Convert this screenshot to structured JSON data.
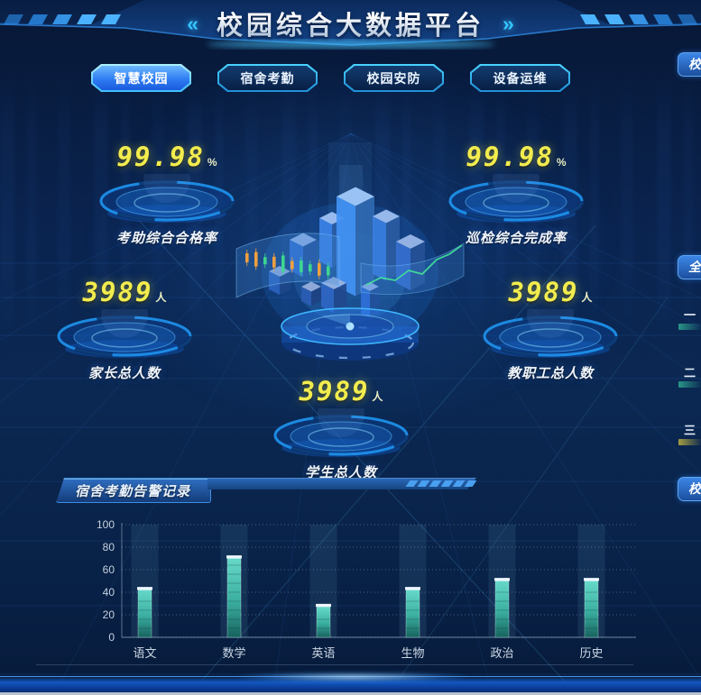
{
  "header": {
    "title": "校园综合大数据平台",
    "chevron_left": "«",
    "chevron_right": "»"
  },
  "tabs": [
    {
      "label": "智慧校园",
      "active": true
    },
    {
      "label": "宿舍考勤",
      "active": false
    },
    {
      "label": "校园安防",
      "active": false
    },
    {
      "label": "设备运维",
      "active": false
    }
  ],
  "stats": [
    {
      "value": "99.98",
      "unit": "%",
      "label": "考助综合合格率"
    },
    {
      "value": "99.98",
      "unit": "%",
      "label": "巡检综合完成率"
    },
    {
      "value": "3989",
      "unit": "人",
      "label": "家长总人数"
    },
    {
      "value": "3989",
      "unit": "人",
      "label": "教职工总人数"
    },
    {
      "value": "3989",
      "unit": "人",
      "label": "学生总人数"
    }
  ],
  "alert_panel": {
    "title": "宿舍考勤告警记录"
  },
  "chart_data": {
    "type": "bar",
    "title": "宿舍考勤告警记录",
    "categories": [
      "语文",
      "数学",
      "英语",
      "生物",
      "政治",
      "历史"
    ],
    "values": [
      42,
      70,
      27,
      42,
      50,
      50
    ],
    "xlabel": "",
    "ylabel": "",
    "ylim": [
      0,
      100
    ],
    "yticks": [
      0,
      20,
      40,
      60,
      80,
      100
    ],
    "grid": true,
    "legend": false,
    "bar_color_top": "#66d9c9",
    "bar_color_bottom": "#17625e",
    "band_color": "rgba(130,205,235,0.10)"
  },
  "right_side": {
    "panels": [
      {
        "label": "校"
      },
      {
        "label": "全"
      },
      {
        "label": "校"
      }
    ],
    "ranking": [
      {
        "numeral": "一",
        "bar_color": "#2ca08e"
      },
      {
        "numeral": "二",
        "bar_color": "#2ca08e"
      },
      {
        "numeral": "三",
        "bar_color": "#b3a93f"
      }
    ]
  },
  "colors": {
    "accent_yellow": "#f2ec4e",
    "accent_cyan": "#35c5ff",
    "tab_active_blue": "#2f7df2",
    "bar_teal": "#46c8b6"
  }
}
